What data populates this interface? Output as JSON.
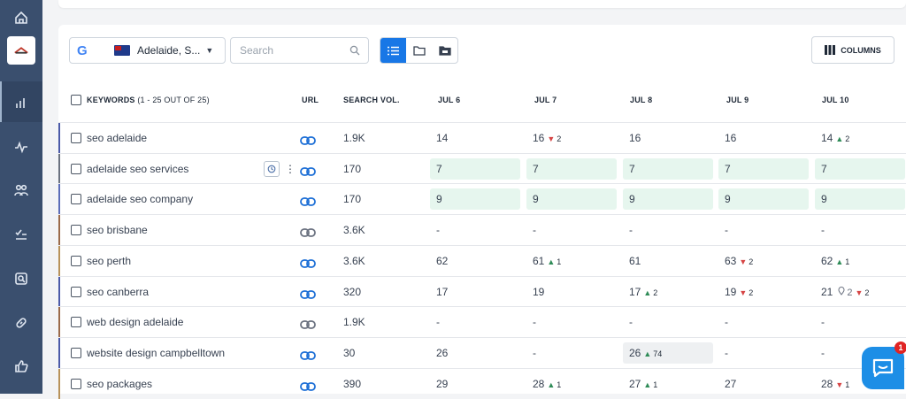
{
  "toolbar": {
    "engine_letter": "G",
    "location_label": "Adelaide, S...",
    "search_placeholder": "Search",
    "columns_label": "COLUMNS"
  },
  "header": {
    "keywords_label": "KEYWORDS",
    "keywords_count": "(1 - 25 OUT OF 25)",
    "url": "URL",
    "search_vol": "SEARCH VOL.",
    "dates": [
      "JUL 6",
      "JUL 7",
      "JUL 8",
      "JUL 9",
      "JUL 10"
    ]
  },
  "rows": [
    {
      "keyword": "seo adelaide",
      "vol": "1.9K",
      "cells": [
        {
          "v": "14"
        },
        {
          "v": "16",
          "dir": "down",
          "d": "2"
        },
        {
          "v": "16"
        },
        {
          "v": "16"
        },
        {
          "v": "14",
          "dir": "up",
          "d": "2"
        }
      ]
    },
    {
      "keyword": "adelaide seo services",
      "vol": "170",
      "cells": [
        {
          "v": "7"
        },
        {
          "v": "7"
        },
        {
          "v": "7"
        },
        {
          "v": "7"
        },
        {
          "v": "7"
        }
      ]
    },
    {
      "keyword": "adelaide seo company",
      "vol": "170",
      "cells": [
        {
          "v": "9"
        },
        {
          "v": "9"
        },
        {
          "v": "9"
        },
        {
          "v": "9"
        },
        {
          "v": "9"
        }
      ]
    },
    {
      "keyword": "seo brisbane",
      "vol": "3.6K",
      "cells": [
        {
          "v": "-"
        },
        {
          "v": "-"
        },
        {
          "v": "-"
        },
        {
          "v": "-"
        },
        {
          "v": "-"
        }
      ]
    },
    {
      "keyword": "seo perth",
      "vol": "3.6K",
      "cells": [
        {
          "v": "62"
        },
        {
          "v": "61",
          "dir": "up",
          "d": "1"
        },
        {
          "v": "61"
        },
        {
          "v": "63",
          "dir": "down",
          "d": "2"
        },
        {
          "v": "62",
          "dir": "up",
          "d": "1"
        }
      ]
    },
    {
      "keyword": "seo canberra",
      "vol": "320",
      "cells": [
        {
          "v": "17"
        },
        {
          "v": "19"
        },
        {
          "v": "17",
          "dir": "up",
          "d": "2"
        },
        {
          "v": "19",
          "dir": "down",
          "d": "2"
        },
        {
          "v": "21",
          "pin": "2",
          "dir": "down",
          "d": "2"
        }
      ]
    },
    {
      "keyword": "web design adelaide",
      "vol": "1.9K",
      "cells": [
        {
          "v": "-"
        },
        {
          "v": "-"
        },
        {
          "v": "-"
        },
        {
          "v": "-"
        },
        {
          "v": "-"
        }
      ]
    },
    {
      "keyword": "website design campbelltown",
      "vol": "30",
      "cells": [
        {
          "v": "26"
        },
        {
          "v": "-"
        },
        {
          "v": "26",
          "dir": "up",
          "d": "74"
        },
        {
          "v": "-"
        },
        {
          "v": "-"
        }
      ]
    },
    {
      "keyword": "seo packages",
      "vol": "390",
      "cells": [
        {
          "v": "29"
        },
        {
          "v": "28",
          "dir": "up",
          "d": "1"
        },
        {
          "v": "27",
          "dir": "up",
          "d": "1"
        },
        {
          "v": "27"
        },
        {
          "v": "28",
          "dir": "down",
          "d": "1"
        }
      ]
    }
  ],
  "chat": {
    "badge": "1"
  },
  "colors": {
    "accent": "#1877e6",
    "up": "#2e8b57",
    "down": "#d64545",
    "highlight": "#e6f6ee"
  }
}
